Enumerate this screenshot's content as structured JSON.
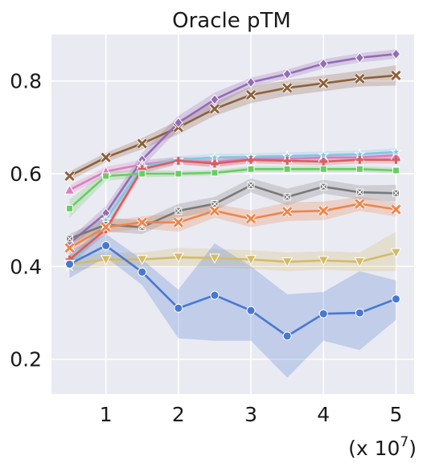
{
  "chart_data": {
    "type": "line",
    "title": "Oracle pTM",
    "xlabel": "",
    "ylabel": "",
    "x_scale_label": {
      "prefix": "(x 10",
      "exponent": "7",
      "suffix": ")"
    },
    "x": [
      0.5,
      1,
      1.5,
      2,
      2.5,
      3,
      3.5,
      4,
      4.5,
      5
    ],
    "xticks": [
      1,
      2,
      3,
      4,
      5
    ],
    "yticks": [
      0.2,
      0.4,
      0.6,
      0.8
    ],
    "xlim": [
      0.25,
      5.25
    ],
    "ylim": [
      0.125,
      0.9
    ],
    "grid": true,
    "background": "#eaeaf2",
    "series": [
      {
        "color": "#8c613c",
        "marker": "x",
        "values": [
          0.595,
          0.635,
          0.665,
          0.7,
          0.74,
          0.77,
          0.785,
          0.795,
          0.805,
          0.812
        ],
        "lower": [
          0.585,
          0.625,
          0.653,
          0.685,
          0.725,
          0.752,
          0.768,
          0.778,
          0.788,
          0.79
        ],
        "upper": [
          0.605,
          0.645,
          0.677,
          0.715,
          0.755,
          0.788,
          0.802,
          0.812,
          0.822,
          0.834
        ]
      },
      {
        "color": "#956cb4",
        "marker": "diamond",
        "values": [
          0.45,
          0.515,
          0.63,
          0.71,
          0.76,
          0.797,
          0.815,
          0.837,
          0.85,
          0.858
        ],
        "lower": [
          0.44,
          0.5,
          0.615,
          0.695,
          0.745,
          0.787,
          0.805,
          0.827,
          0.84,
          0.848
        ],
        "upper": [
          0.46,
          0.53,
          0.645,
          0.725,
          0.775,
          0.807,
          0.825,
          0.847,
          0.86,
          0.868
        ]
      },
      {
        "color": "#dc7ec0",
        "marker": "triangle-up",
        "values": [
          0.565,
          0.605,
          0.62,
          0.628,
          0.625,
          0.632,
          0.632,
          0.635,
          0.635,
          0.64
        ],
        "lower": [
          0.555,
          0.595,
          0.61,
          0.62,
          0.615,
          0.624,
          0.624,
          0.627,
          0.627,
          0.632
        ],
        "upper": [
          0.575,
          0.615,
          0.63,
          0.636,
          0.635,
          0.64,
          0.64,
          0.643,
          0.643,
          0.648
        ]
      },
      {
        "color": "#82c6e2",
        "marker": "star",
        "values": [
          0.4,
          0.5,
          0.615,
          0.63,
          0.635,
          0.636,
          0.638,
          0.64,
          0.642,
          0.647
        ],
        "lower": [
          0.39,
          0.488,
          0.603,
          0.622,
          0.627,
          0.628,
          0.63,
          0.632,
          0.634,
          0.639
        ],
        "upper": [
          0.41,
          0.512,
          0.627,
          0.638,
          0.643,
          0.644,
          0.646,
          0.648,
          0.65,
          0.655
        ]
      },
      {
        "color": "#d65f5f",
        "marker": "plus",
        "values": [
          0.415,
          0.48,
          0.61,
          0.628,
          0.622,
          0.63,
          0.628,
          0.626,
          0.63,
          0.63
        ],
        "lower": [
          0.405,
          0.47,
          0.6,
          0.62,
          0.614,
          0.622,
          0.62,
          0.618,
          0.622,
          0.622
        ],
        "upper": [
          0.425,
          0.49,
          0.62,
          0.636,
          0.63,
          0.638,
          0.636,
          0.634,
          0.638,
          0.638
        ]
      },
      {
        "color": "#6acc64",
        "marker": "square",
        "values": [
          0.525,
          0.595,
          0.6,
          0.6,
          0.602,
          0.61,
          0.61,
          0.61,
          0.61,
          0.607
        ],
        "lower": [
          0.505,
          0.585,
          0.592,
          0.594,
          0.596,
          0.604,
          0.604,
          0.604,
          0.604,
          0.601
        ],
        "upper": [
          0.545,
          0.605,
          0.608,
          0.606,
          0.608,
          0.616,
          0.616,
          0.616,
          0.616,
          0.613
        ]
      },
      {
        "color": "#797979",
        "marker": "x-square",
        "values": [
          0.46,
          0.49,
          0.485,
          0.52,
          0.535,
          0.575,
          0.55,
          0.572,
          0.56,
          0.558
        ],
        "lower": [
          0.45,
          0.475,
          0.47,
          0.505,
          0.52,
          0.56,
          0.532,
          0.557,
          0.545,
          0.54
        ],
        "upper": [
          0.47,
          0.505,
          0.5,
          0.535,
          0.55,
          0.59,
          0.568,
          0.587,
          0.575,
          0.576
        ]
      },
      {
        "color": "#ee854a",
        "marker": "x",
        "values": [
          0.44,
          0.485,
          0.495,
          0.495,
          0.52,
          0.503,
          0.518,
          0.52,
          0.535,
          0.523
        ],
        "lower": [
          0.428,
          0.472,
          0.482,
          0.475,
          0.505,
          0.485,
          0.498,
          0.5,
          0.52,
          0.508
        ],
        "upper": [
          0.452,
          0.498,
          0.508,
          0.515,
          0.535,
          0.521,
          0.538,
          0.54,
          0.55,
          0.538
        ]
      },
      {
        "color": "#d5bb67",
        "marker": "triangle-down",
        "values": [
          0.405,
          0.415,
          0.415,
          0.42,
          0.418,
          0.415,
          0.41,
          0.413,
          0.41,
          0.43
        ],
        "lower": [
          0.39,
          0.4,
          0.4,
          0.4,
          0.398,
          0.395,
          0.39,
          0.393,
          0.39,
          0.39
        ],
        "upper": [
          0.42,
          0.43,
          0.43,
          0.44,
          0.438,
          0.435,
          0.43,
          0.433,
          0.43,
          0.475
        ]
      },
      {
        "color": "#4878d0",
        "marker": "circle",
        "values": [
          0.405,
          0.445,
          0.388,
          0.31,
          0.338,
          0.305,
          0.25,
          0.298,
          0.3,
          0.33
        ],
        "lower": [
          0.375,
          0.42,
          0.36,
          0.245,
          0.24,
          0.24,
          0.16,
          0.24,
          0.22,
          0.285
        ],
        "upper": [
          0.435,
          0.47,
          0.415,
          0.35,
          0.45,
          0.4,
          0.34,
          0.345,
          0.39,
          0.37
        ]
      }
    ]
  }
}
